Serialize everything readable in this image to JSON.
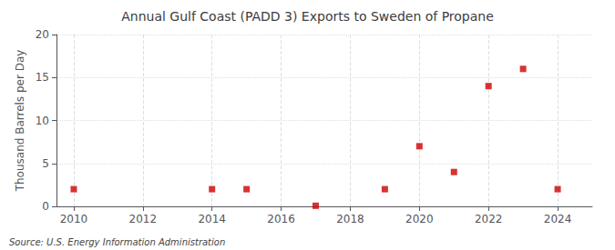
{
  "chart_data": {
    "type": "scatter",
    "title": "Annual Gulf Coast (PADD 3) Exports to Sweden of Propane",
    "ylabel": "Thousand Barrels per Day",
    "annotations": [
      "Source: U.S. Energy Information Administration"
    ],
    "x": [
      2010,
      2014,
      2015,
      2017,
      2019,
      2020,
      2021,
      2022,
      2023,
      2024
    ],
    "values": [
      2.0,
      2.0,
      2.0,
      0.07,
      2.0,
      7.0,
      4.0,
      14.0,
      16.0,
      2.0
    ],
    "color": "#cc0000",
    "marker": "square",
    "xlim": [
      2009.5,
      2025.0
    ],
    "xticks": [
      2010,
      2012,
      2014,
      2016,
      2018,
      2020,
      2022,
      2024
    ],
    "ylim": [
      0,
      20
    ],
    "yticks": [
      0,
      5,
      10,
      15,
      20
    ],
    "grid": true
  }
}
